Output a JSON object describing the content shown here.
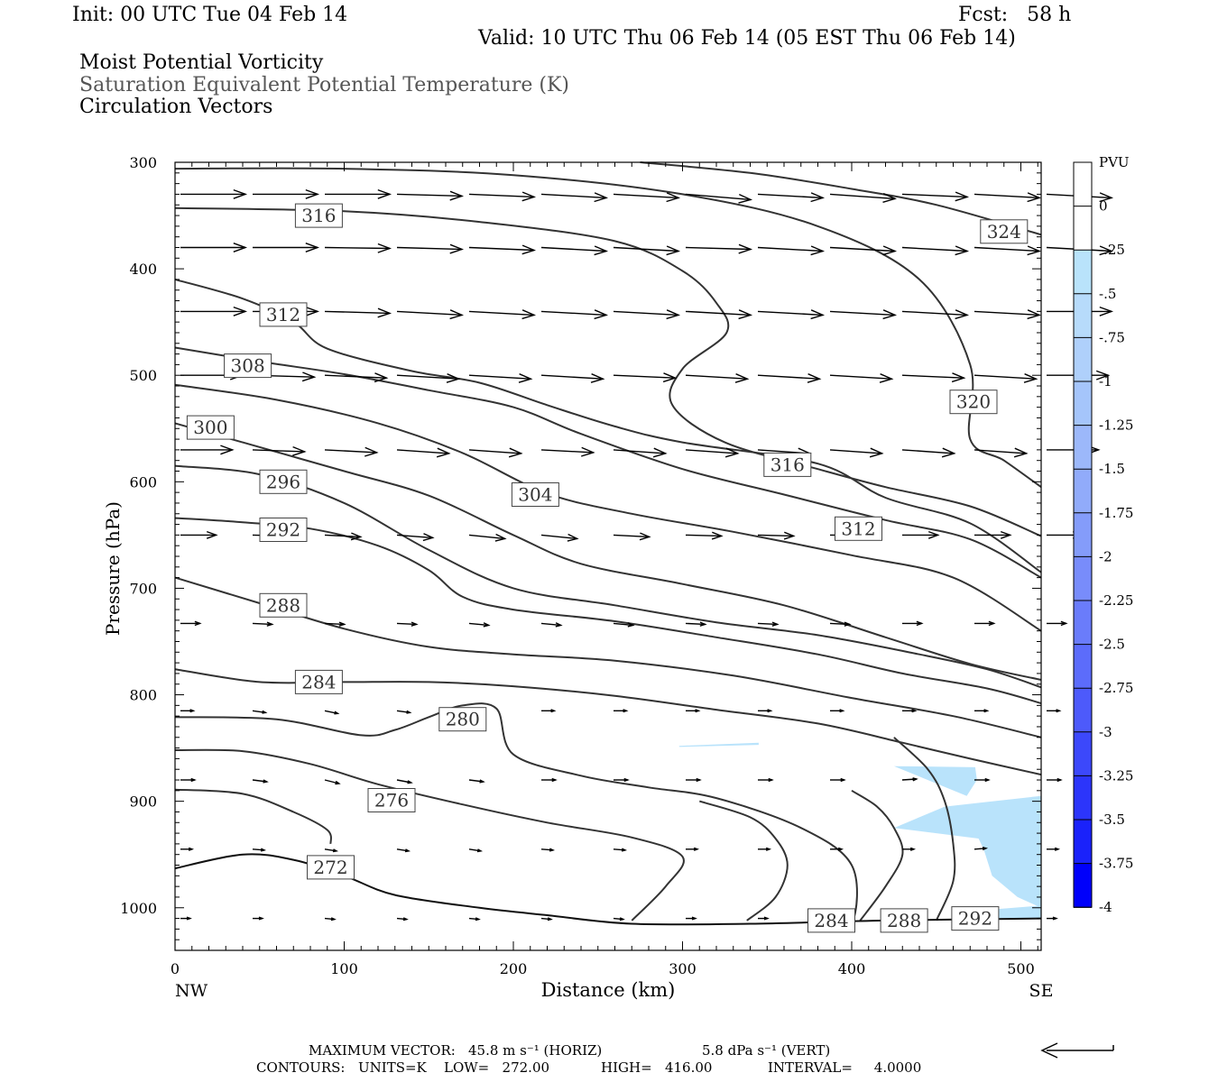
{
  "header": {
    "init": "Init: 00 UTC Tue 04 Feb 14",
    "fcst": "Fcst:   58 h",
    "valid": "Valid: 10 UTC Thu 06 Feb 14 (05 EST Thu 06 Feb 14)",
    "fields": [
      "Moist Potential Vorticity",
      "Saturation Equivalent Potential Temperature (K)",
      "Circulation Vectors"
    ]
  },
  "footer": {
    "max_vector_label": "MAXIMUM VECTOR:",
    "horiz": "45.8 m s⁻¹ (HORIZ)",
    "vert": "5.8 dPa s⁻¹ (VERT)",
    "contours_label": "CONTOURS:",
    "units": "UNITS=K",
    "low": "LOW=   272.00",
    "high": "HIGH=   416.00",
    "interval": "INTERVAL=     4.0000"
  },
  "colorbar": {
    "units": "PVU",
    "levels": [
      "0",
      "-.25",
      "-.5",
      "-.75",
      "-1",
      "-1.25",
      "-1.5",
      "-1.75",
      "-2",
      "-2.25",
      "-2.5",
      "-2.75",
      "-3",
      "-3.25",
      "-3.5",
      "-3.75",
      "-4"
    ],
    "colors": [
      "#ffffff",
      "#ffffff",
      "#b9e3fb",
      "#b7dbfb",
      "#afd0fb",
      "#a5c5fb",
      "#9cb8fa",
      "#91abfa",
      "#849cfa",
      "#788cfb",
      "#6a7cfb",
      "#5c6cfb",
      "#4d5afb",
      "#3c48fb",
      "#2c35fb",
      "#1a22fb",
      "#0000fb"
    ]
  },
  "chart_data": {
    "type": "contour",
    "xlabel": "Distance (km)",
    "ylabel": "Pressure (hPa)",
    "x_ticks": [
      "0",
      "100",
      "200",
      "300",
      "400",
      "500"
    ],
    "x_end_labels": [
      "NW",
      "SE"
    ],
    "y_ticks": [
      "300",
      "400",
      "500",
      "600",
      "700",
      "800",
      "900",
      "1000"
    ],
    "xlim": [
      0,
      512
    ],
    "ylim": [
      1040,
      300
    ],
    "theta_e_contours": [
      {
        "level": 324,
        "points": [
          [
            275,
            300
          ],
          [
            340,
            310
          ],
          [
            400,
            325
          ],
          [
            450,
            340
          ],
          [
            512,
            368
          ]
        ]
      },
      {
        "level": 320,
        "points": [
          [
            0,
            306
          ],
          [
            100,
            306
          ],
          [
            200,
            312
          ],
          [
            300,
            330
          ],
          [
            380,
            360
          ],
          [
            440,
            410
          ],
          [
            470,
            490
          ],
          [
            470,
            560
          ],
          [
            490,
            580
          ],
          [
            512,
            605
          ]
        ]
      },
      {
        "level": 316,
        "points": [
          [
            0,
            343
          ],
          [
            100,
            346
          ],
          [
            180,
            356
          ],
          [
            260,
            374
          ],
          [
            300,
            402
          ],
          [
            320,
            432
          ],
          [
            326,
            460
          ],
          [
            300,
            494
          ],
          [
            294,
            528
          ],
          [
            325,
            563
          ],
          [
            380,
            588
          ],
          [
            420,
            605
          ],
          [
            470,
            623
          ],
          [
            512,
            651
          ]
        ]
      },
      {
        "level": 312,
        "points": [
          [
            0,
            410
          ],
          [
            40,
            428
          ],
          [
            70,
            450
          ],
          [
            90,
            475
          ],
          [
            140,
            496
          ],
          [
            180,
            507
          ],
          [
            220,
            528
          ],
          [
            260,
            548
          ],
          [
            300,
            563
          ],
          [
            380,
            583
          ],
          [
            420,
            615
          ],
          [
            470,
            639
          ],
          [
            512,
            685
          ]
        ]
      },
      {
        "level": 308,
        "points": [
          [
            0,
            474
          ],
          [
            50,
            487
          ],
          [
            100,
            499
          ],
          [
            150,
            514
          ],
          [
            200,
            530
          ],
          [
            240,
            555
          ],
          [
            300,
            588
          ],
          [
            360,
            612
          ],
          [
            420,
            636
          ],
          [
            470,
            654
          ],
          [
            512,
            690
          ]
        ]
      },
      {
        "level": 304,
        "points": [
          [
            0,
            509
          ],
          [
            60,
            523
          ],
          [
            120,
            545
          ],
          [
            170,
            573
          ],
          [
            220,
            611
          ],
          [
            270,
            630
          ],
          [
            330,
            647
          ],
          [
            400,
            669
          ],
          [
            460,
            690
          ],
          [
            512,
            740
          ]
        ]
      },
      {
        "level": 300,
        "points": [
          [
            0,
            545
          ],
          [
            40,
            563
          ],
          [
            100,
            590
          ],
          [
            150,
            613
          ],
          [
            200,
            650
          ],
          [
            240,
            677
          ],
          [
            300,
            696
          ],
          [
            360,
            716
          ],
          [
            420,
            746
          ],
          [
            470,
            771
          ],
          [
            512,
            786
          ]
        ]
      },
      {
        "level": 296,
        "points": [
          [
            0,
            585
          ],
          [
            50,
            593
          ],
          [
            100,
            620
          ],
          [
            150,
            664
          ],
          [
            200,
            700
          ],
          [
            260,
            716
          ],
          [
            320,
            732
          ],
          [
            380,
            744
          ],
          [
            440,
            762
          ],
          [
            480,
            776
          ],
          [
            512,
            793
          ]
        ]
      },
      {
        "level": 292,
        "points": [
          [
            0,
            634
          ],
          [
            40,
            638
          ],
          [
            80,
            644
          ],
          [
            120,
            660
          ],
          [
            150,
            683
          ],
          [
            170,
            708
          ],
          [
            200,
            720
          ],
          [
            260,
            731
          ],
          [
            320,
            746
          ],
          [
            380,
            762
          ],
          [
            430,
            780
          ],
          [
            480,
            794
          ],
          [
            512,
            808
          ]
        ]
      },
      {
        "level": 288,
        "points": [
          [
            0,
            690
          ],
          [
            50,
            714
          ],
          [
            100,
            738
          ],
          [
            150,
            755
          ],
          [
            200,
            762
          ],
          [
            260,
            768
          ],
          [
            330,
            782
          ],
          [
            400,
            803
          ],
          [
            460,
            820
          ],
          [
            512,
            840
          ]
        ]
      },
      {
        "level": 284,
        "points": [
          [
            0,
            776
          ],
          [
            50,
            788
          ],
          [
            100,
            788
          ],
          [
            150,
            788
          ],
          [
            200,
            792
          ],
          [
            260,
            801
          ],
          [
            320,
            814
          ],
          [
            380,
            827
          ],
          [
            430,
            845
          ],
          [
            470,
            860
          ],
          [
            512,
            875
          ]
        ]
      },
      {
        "level": 280,
        "points": [
          [
            0,
            821
          ],
          [
            60,
            823
          ],
          [
            110,
            838
          ],
          [
            130,
            833
          ],
          [
            150,
            821
          ],
          [
            170,
            810
          ],
          [
            190,
            813
          ],
          [
            200,
            856
          ],
          [
            240,
            876
          ],
          [
            280,
            887
          ],
          [
            320,
            897
          ],
          [
            370,
            925
          ],
          [
            400,
            960
          ],
          [
            400,
            1015
          ],
          [
            380,
            1020
          ]
        ]
      },
      {
        "level": 276,
        "points": [
          [
            0,
            852
          ],
          [
            40,
            853
          ],
          [
            80,
            865
          ],
          [
            120,
            884
          ],
          [
            170,
            903
          ],
          [
            220,
            920
          ],
          [
            270,
            934
          ],
          [
            300,
            952
          ],
          [
            290,
            980
          ],
          [
            270,
            1012
          ]
        ]
      },
      {
        "level": 272,
        "points": [
          [
            0,
            889
          ],
          [
            40,
            893
          ],
          [
            70,
            910
          ],
          [
            90,
            927
          ],
          [
            92,
            940
          ]
        ]
      },
      {
        "level": 284,
        "points": [
          [
            338,
            1012
          ],
          [
            355,
            990
          ],
          [
            362,
            960
          ],
          [
            355,
            935
          ],
          [
            340,
            915
          ],
          [
            310,
            900
          ]
        ]
      },
      {
        "level": 288,
        "points": [
          [
            405,
            1012
          ],
          [
            420,
            980
          ],
          [
            430,
            950
          ],
          [
            425,
            925
          ],
          [
            415,
            905
          ],
          [
            400,
            890
          ]
        ]
      },
      {
        "level": 292,
        "points": [
          [
            450,
            1012
          ],
          [
            460,
            975
          ],
          [
            460,
            940
          ],
          [
            455,
            900
          ],
          [
            445,
            870
          ],
          [
            425,
            840
          ]
        ]
      }
    ],
    "surface_line": [
      [
        0,
        963
      ],
      [
        40,
        950
      ],
      [
        70,
        955
      ],
      [
        100,
        970
      ],
      [
        130,
        988
      ],
      [
        180,
        1000
      ],
      [
        220,
        1007
      ],
      [
        270,
        1015
      ],
      [
        340,
        1015
      ],
      [
        420,
        1012
      ],
      [
        512,
        1010
      ]
    ],
    "contour_labels": [
      {
        "text": "316",
        "x": 85,
        "y": 350
      },
      {
        "text": "324",
        "x": 490,
        "y": 365
      },
      {
        "text": "312",
        "x": 64,
        "y": 443
      },
      {
        "text": "308",
        "x": 43,
        "y": 491
      },
      {
        "text": "300",
        "x": 21,
        "y": 549
      },
      {
        "text": "320",
        "x": 472,
        "y": 525
      },
      {
        "text": "316",
        "x": 362,
        "y": 584
      },
      {
        "text": "296",
        "x": 64,
        "y": 600
      },
      {
        "text": "304",
        "x": 213,
        "y": 612
      },
      {
        "text": "292",
        "x": 64,
        "y": 645
      },
      {
        "text": "312",
        "x": 404,
        "y": 644
      },
      {
        "text": "288",
        "x": 64,
        "y": 716
      },
      {
        "text": "284",
        "x": 85,
        "y": 788
      },
      {
        "text": "280",
        "x": 170,
        "y": 823
      },
      {
        "text": "276",
        "x": 128,
        "y": 899
      },
      {
        "text": "272",
        "x": 92,
        "y": 962
      },
      {
        "text": "284",
        "x": 388,
        "y": 1012
      },
      {
        "text": "288",
        "x": 431,
        "y": 1012
      },
      {
        "text": "292",
        "x": 473,
        "y": 1010
      }
    ],
    "mpv_regions": [
      {
        "level": -0.5,
        "polygon": [
          [
            298,
            848
          ],
          [
            345,
            845
          ],
          [
            345,
            847
          ],
          [
            298,
            849
          ]
        ]
      },
      {
        "level": -0.5,
        "polygon": [
          [
            425,
            867
          ],
          [
            473,
            868
          ],
          [
            474,
            880
          ],
          [
            468,
            895
          ]
        ]
      },
      {
        "level": -0.5,
        "polygon": [
          [
            425,
            925
          ],
          [
            455,
            905
          ],
          [
            512,
            895
          ],
          [
            512,
            1000
          ],
          [
            498,
            990
          ],
          [
            483,
            970
          ],
          [
            478,
            945
          ],
          [
            475,
            935
          ]
        ]
      },
      {
        "level": -0.5,
        "polygon": [
          [
            460,
            1010
          ],
          [
            480,
            1002
          ],
          [
            512,
            998
          ],
          [
            512,
            1010
          ]
        ]
      }
    ],
    "vector_rows": [
      {
        "p": 330,
        "len": 1.0,
        "dys": [
          0,
          0,
          0,
          2,
          3,
          4,
          4,
          6,
          4,
          5,
          3,
          4,
          4
        ]
      },
      {
        "p": 380,
        "len": 1.0,
        "dys": [
          0,
          0,
          1,
          2,
          3,
          4,
          4,
          2,
          4,
          4,
          4,
          4,
          4
        ]
      },
      {
        "p": 440,
        "len": 1.0,
        "dys": [
          0,
          0,
          2,
          4,
          4,
          4,
          4,
          4,
          4,
          4,
          4,
          4,
          0
        ]
      },
      {
        "p": 500,
        "len": 0.95,
        "dys": [
          0,
          2,
          3,
          4,
          4,
          4,
          3,
          4,
          4,
          4,
          3,
          4,
          0
        ]
      },
      {
        "p": 570,
        "len": 0.8,
        "dys": [
          0,
          2,
          3,
          4,
          4,
          3,
          4,
          4,
          4,
          4,
          4,
          4,
          0
        ]
      },
      {
        "p": 650,
        "len": 0.55,
        "dys": [
          0,
          1,
          2,
          3,
          4,
          4,
          2,
          1,
          1,
          0,
          0,
          0,
          0
        ]
      },
      {
        "p": 733,
        "len": 0.3,
        "dys": [
          0,
          1,
          1,
          1,
          2,
          2,
          2,
          1,
          1,
          1,
          0,
          0,
          0
        ]
      },
      {
        "p": 815,
        "len": 0.2,
        "dys": [
          0,
          2,
          3,
          2,
          1,
          0,
          0,
          0,
          0,
          0,
          0,
          0,
          0
        ]
      },
      {
        "p": 880,
        "len": 0.22,
        "dys": [
          0,
          2,
          4,
          3,
          2,
          0,
          0,
          0,
          0,
          0,
          -1,
          0,
          0
        ]
      },
      {
        "p": 945,
        "len": 0.18,
        "dys": [
          0,
          1,
          2,
          2,
          2,
          1,
          1,
          0,
          0,
          0,
          0,
          -1,
          0
        ]
      },
      {
        "p": 1010,
        "len": 0.15,
        "dys": [
          0,
          0,
          1,
          1,
          1,
          1,
          1,
          0,
          0,
          0,
          0,
          0,
          0
        ]
      }
    ]
  }
}
